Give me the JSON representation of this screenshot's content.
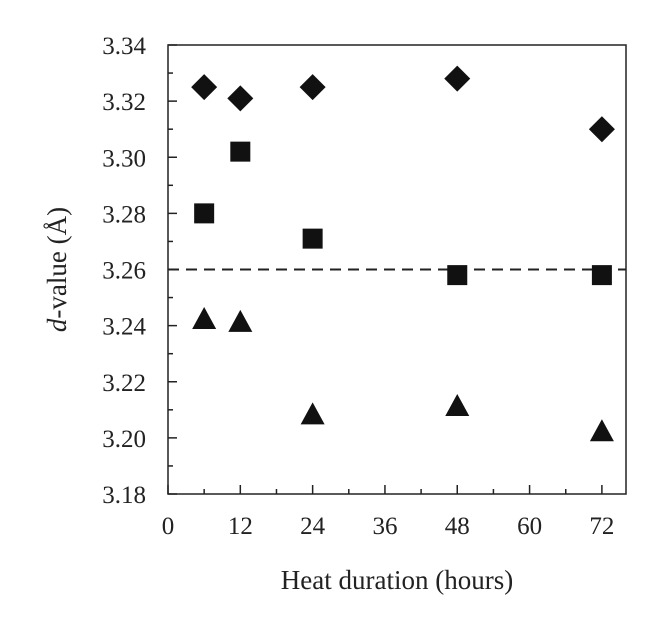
{
  "chart_data": {
    "type": "scatter",
    "title": "",
    "xlabel": "Heat duration (hours)",
    "ylabel_italic": "d",
    "ylabel_rest": "-value (Å)",
    "xlim": [
      0,
      76
    ],
    "ylim": [
      3.18,
      3.34
    ],
    "x_ticks": [
      0,
      12,
      24,
      36,
      48,
      60,
      72
    ],
    "x_tick_labels": [
      "0",
      "12",
      "24",
      "36",
      "48",
      "60",
      "72"
    ],
    "y_ticks": [
      3.18,
      3.2,
      3.22,
      3.24,
      3.26,
      3.28,
      3.3,
      3.32,
      3.34
    ],
    "y_tick_labels": [
      "3.18",
      "3.20",
      "3.22",
      "3.24",
      "3.26",
      "3.28",
      "3.30",
      "3.32",
      "3.34"
    ],
    "grid": false,
    "legend": "none",
    "reference_line": {
      "y": 3.26,
      "style": "dashed"
    },
    "series": [
      {
        "marker": "diamond",
        "points": [
          [
            6,
            3.325
          ],
          [
            12,
            3.321
          ],
          [
            24,
            3.325
          ],
          [
            48,
            3.328
          ],
          [
            72,
            3.31
          ]
        ]
      },
      {
        "marker": "square",
        "points": [
          [
            6,
            3.28
          ],
          [
            12,
            3.302
          ],
          [
            24,
            3.271
          ],
          [
            48,
            3.258
          ],
          [
            72,
            3.258
          ]
        ]
      },
      {
        "marker": "triangle",
        "points": [
          [
            6,
            3.242
          ],
          [
            12,
            3.241
          ],
          [
            24,
            3.208
          ],
          [
            48,
            3.211
          ],
          [
            72,
            3.202
          ]
        ]
      }
    ],
    "colors": {
      "marks": "#111111",
      "axes": "#222222"
    }
  }
}
